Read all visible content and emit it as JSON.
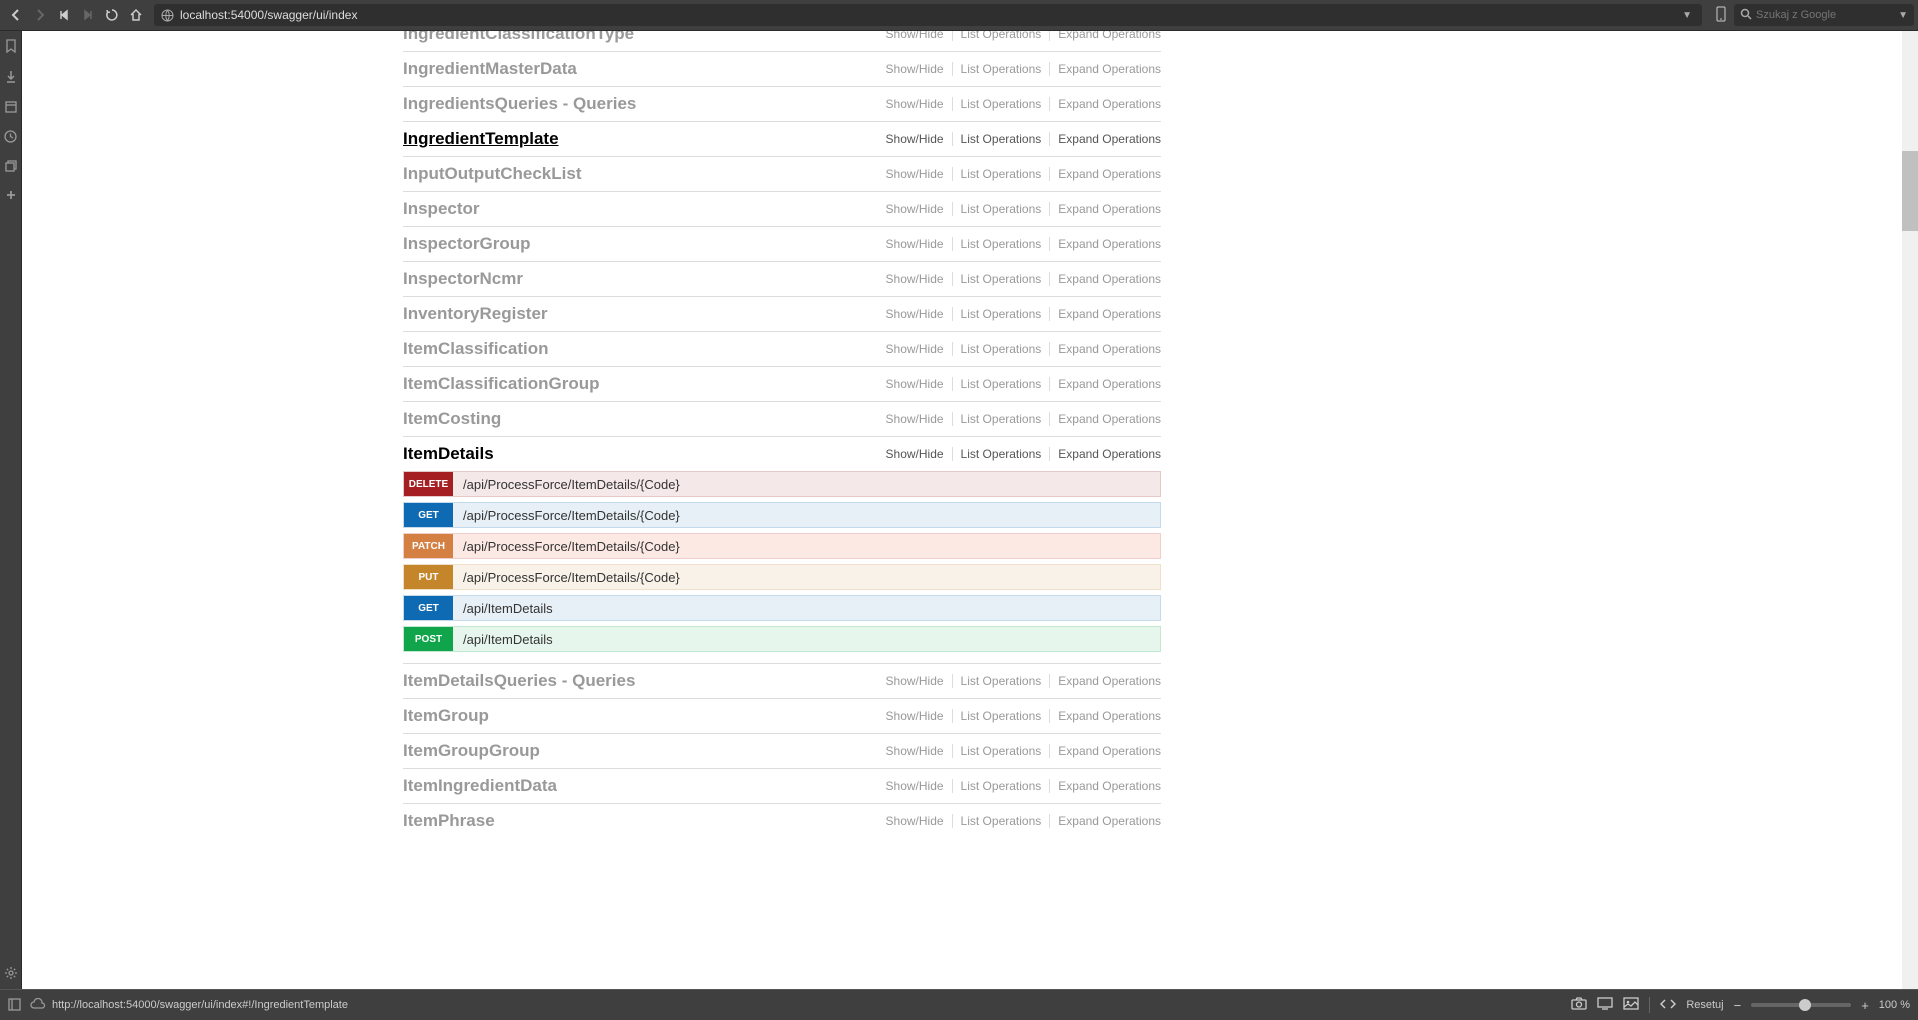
{
  "browser": {
    "url": "localhost:54000/swagger/ui/index",
    "search_placeholder": "Szukaj z Google"
  },
  "op_labels": {
    "show_hide": "Show/Hide",
    "list": "List Operations",
    "expand": "Expand Operations"
  },
  "resources": [
    {
      "name": "IngredientClassificationType",
      "active": false,
      "cut_top": true,
      "operations": []
    },
    {
      "name": "IngredientMasterData",
      "active": false,
      "operations": []
    },
    {
      "name": "IngredientsQueries - Queries",
      "active": false,
      "operations": []
    },
    {
      "name": "IngredientTemplate",
      "active": true,
      "underline": true,
      "operations": []
    },
    {
      "name": "InputOutputCheckList",
      "active": false,
      "operations": []
    },
    {
      "name": "Inspector",
      "active": false,
      "operations": []
    },
    {
      "name": "InspectorGroup",
      "active": false,
      "operations": []
    },
    {
      "name": "InspectorNcmr",
      "active": false,
      "operations": []
    },
    {
      "name": "InventoryRegister",
      "active": false,
      "operations": []
    },
    {
      "name": "ItemClassification",
      "active": false,
      "operations": []
    },
    {
      "name": "ItemClassificationGroup",
      "active": false,
      "operations": []
    },
    {
      "name": "ItemCosting",
      "active": false,
      "operations": []
    },
    {
      "name": "ItemDetails",
      "active": true,
      "operations": [
        {
          "method": "DELETE",
          "class": "delete",
          "path": "/api/ProcessForce/ItemDetails/{Code}"
        },
        {
          "method": "GET",
          "class": "get",
          "path": "/api/ProcessForce/ItemDetails/{Code}"
        },
        {
          "method": "PATCH",
          "class": "patch",
          "path": "/api/ProcessForce/ItemDetails/{Code}"
        },
        {
          "method": "PUT",
          "class": "put",
          "path": "/api/ProcessForce/ItemDetails/{Code}"
        },
        {
          "method": "GET",
          "class": "get",
          "path": "/api/ItemDetails"
        },
        {
          "method": "POST",
          "class": "post",
          "path": "/api/ItemDetails"
        }
      ]
    },
    {
      "name": "ItemDetailsQueries - Queries",
      "active": false,
      "operations": []
    },
    {
      "name": "ItemGroup",
      "active": false,
      "operations": []
    },
    {
      "name": "ItemGroupGroup",
      "active": false,
      "operations": []
    },
    {
      "name": "ItemIngredientData",
      "active": false,
      "operations": []
    },
    {
      "name": "ItemPhrase",
      "active": false,
      "operations": []
    }
  ],
  "status": {
    "url": "http://localhost:54000/swagger/ui/index#!/IngredientTemplate",
    "reset_label": "Resetuj",
    "zoom": "100 %"
  },
  "colors": {
    "chrome_bg": "#3f3f3f",
    "content_bg": "#ffffff",
    "inactive_text": "#999999",
    "active_text": "#000000",
    "border": "#dddddd",
    "delete_bg": "#f5e8e8",
    "delete_method": "#a41e22",
    "get_bg": "#e7f0f7",
    "get_method": "#0f6ab4",
    "patch_bg": "#fce9e3",
    "patch_method": "#d38042",
    "put_bg": "#f9f2e9",
    "put_method": "#c5862b",
    "post_bg": "#e7f6ec",
    "post_method": "#10a54a"
  }
}
